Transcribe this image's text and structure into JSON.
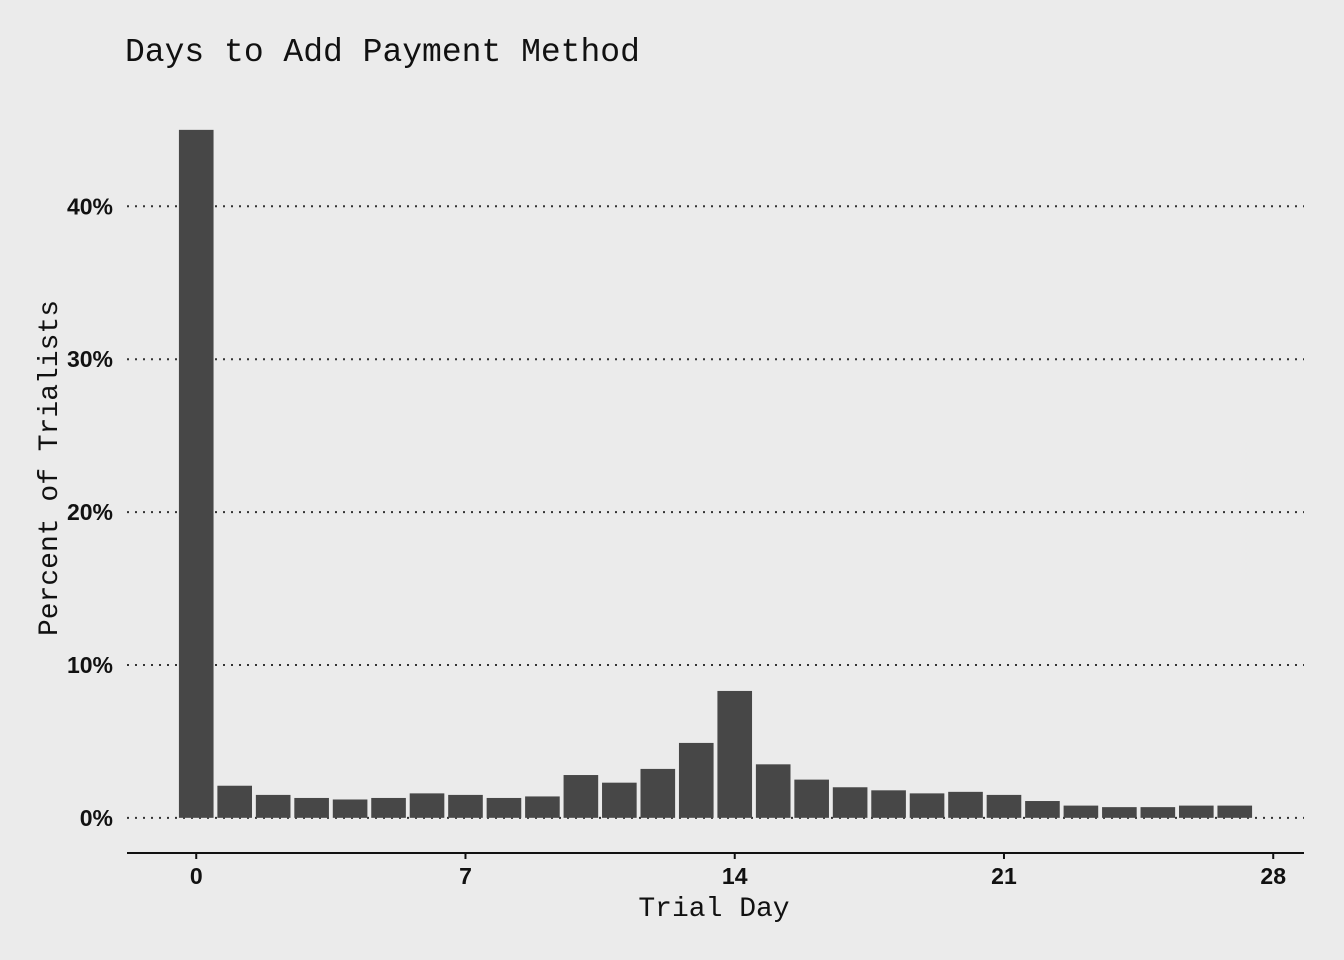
{
  "chart_data": {
    "type": "bar",
    "title": "Days to Add Payment Method",
    "xlabel": "Trial Day",
    "ylabel": "Percent of Trialists",
    "x": [
      0,
      1,
      2,
      3,
      4,
      5,
      6,
      7,
      8,
      9,
      10,
      11,
      12,
      13,
      14,
      15,
      16,
      17,
      18,
      19,
      20,
      21,
      22,
      23,
      24,
      25,
      26,
      27
    ],
    "values": [
      45.0,
      2.1,
      1.5,
      1.3,
      1.2,
      1.3,
      1.6,
      1.5,
      1.3,
      1.4,
      2.8,
      2.3,
      3.2,
      4.9,
      8.3,
      3.5,
      2.5,
      2.0,
      1.8,
      1.6,
      1.7,
      1.5,
      1.1,
      0.8,
      0.7,
      0.7,
      0.8,
      0.8
    ],
    "xlim": [
      -1.8,
      28.8
    ],
    "ylim": [
      -2.3,
      48
    ],
    "x_ticks": [
      0,
      7,
      14,
      21,
      28
    ],
    "x_tick_labels": [
      "0",
      "7",
      "14",
      "21",
      "28"
    ],
    "y_ticks": [
      0,
      10,
      20,
      30,
      40
    ],
    "y_tick_labels": [
      "0%",
      "10%",
      "20%",
      "30%",
      "40%"
    ],
    "bar_color": "#474747",
    "background_color": "#ebebeb",
    "grid": "dotted horizontal",
    "legend": "none"
  }
}
